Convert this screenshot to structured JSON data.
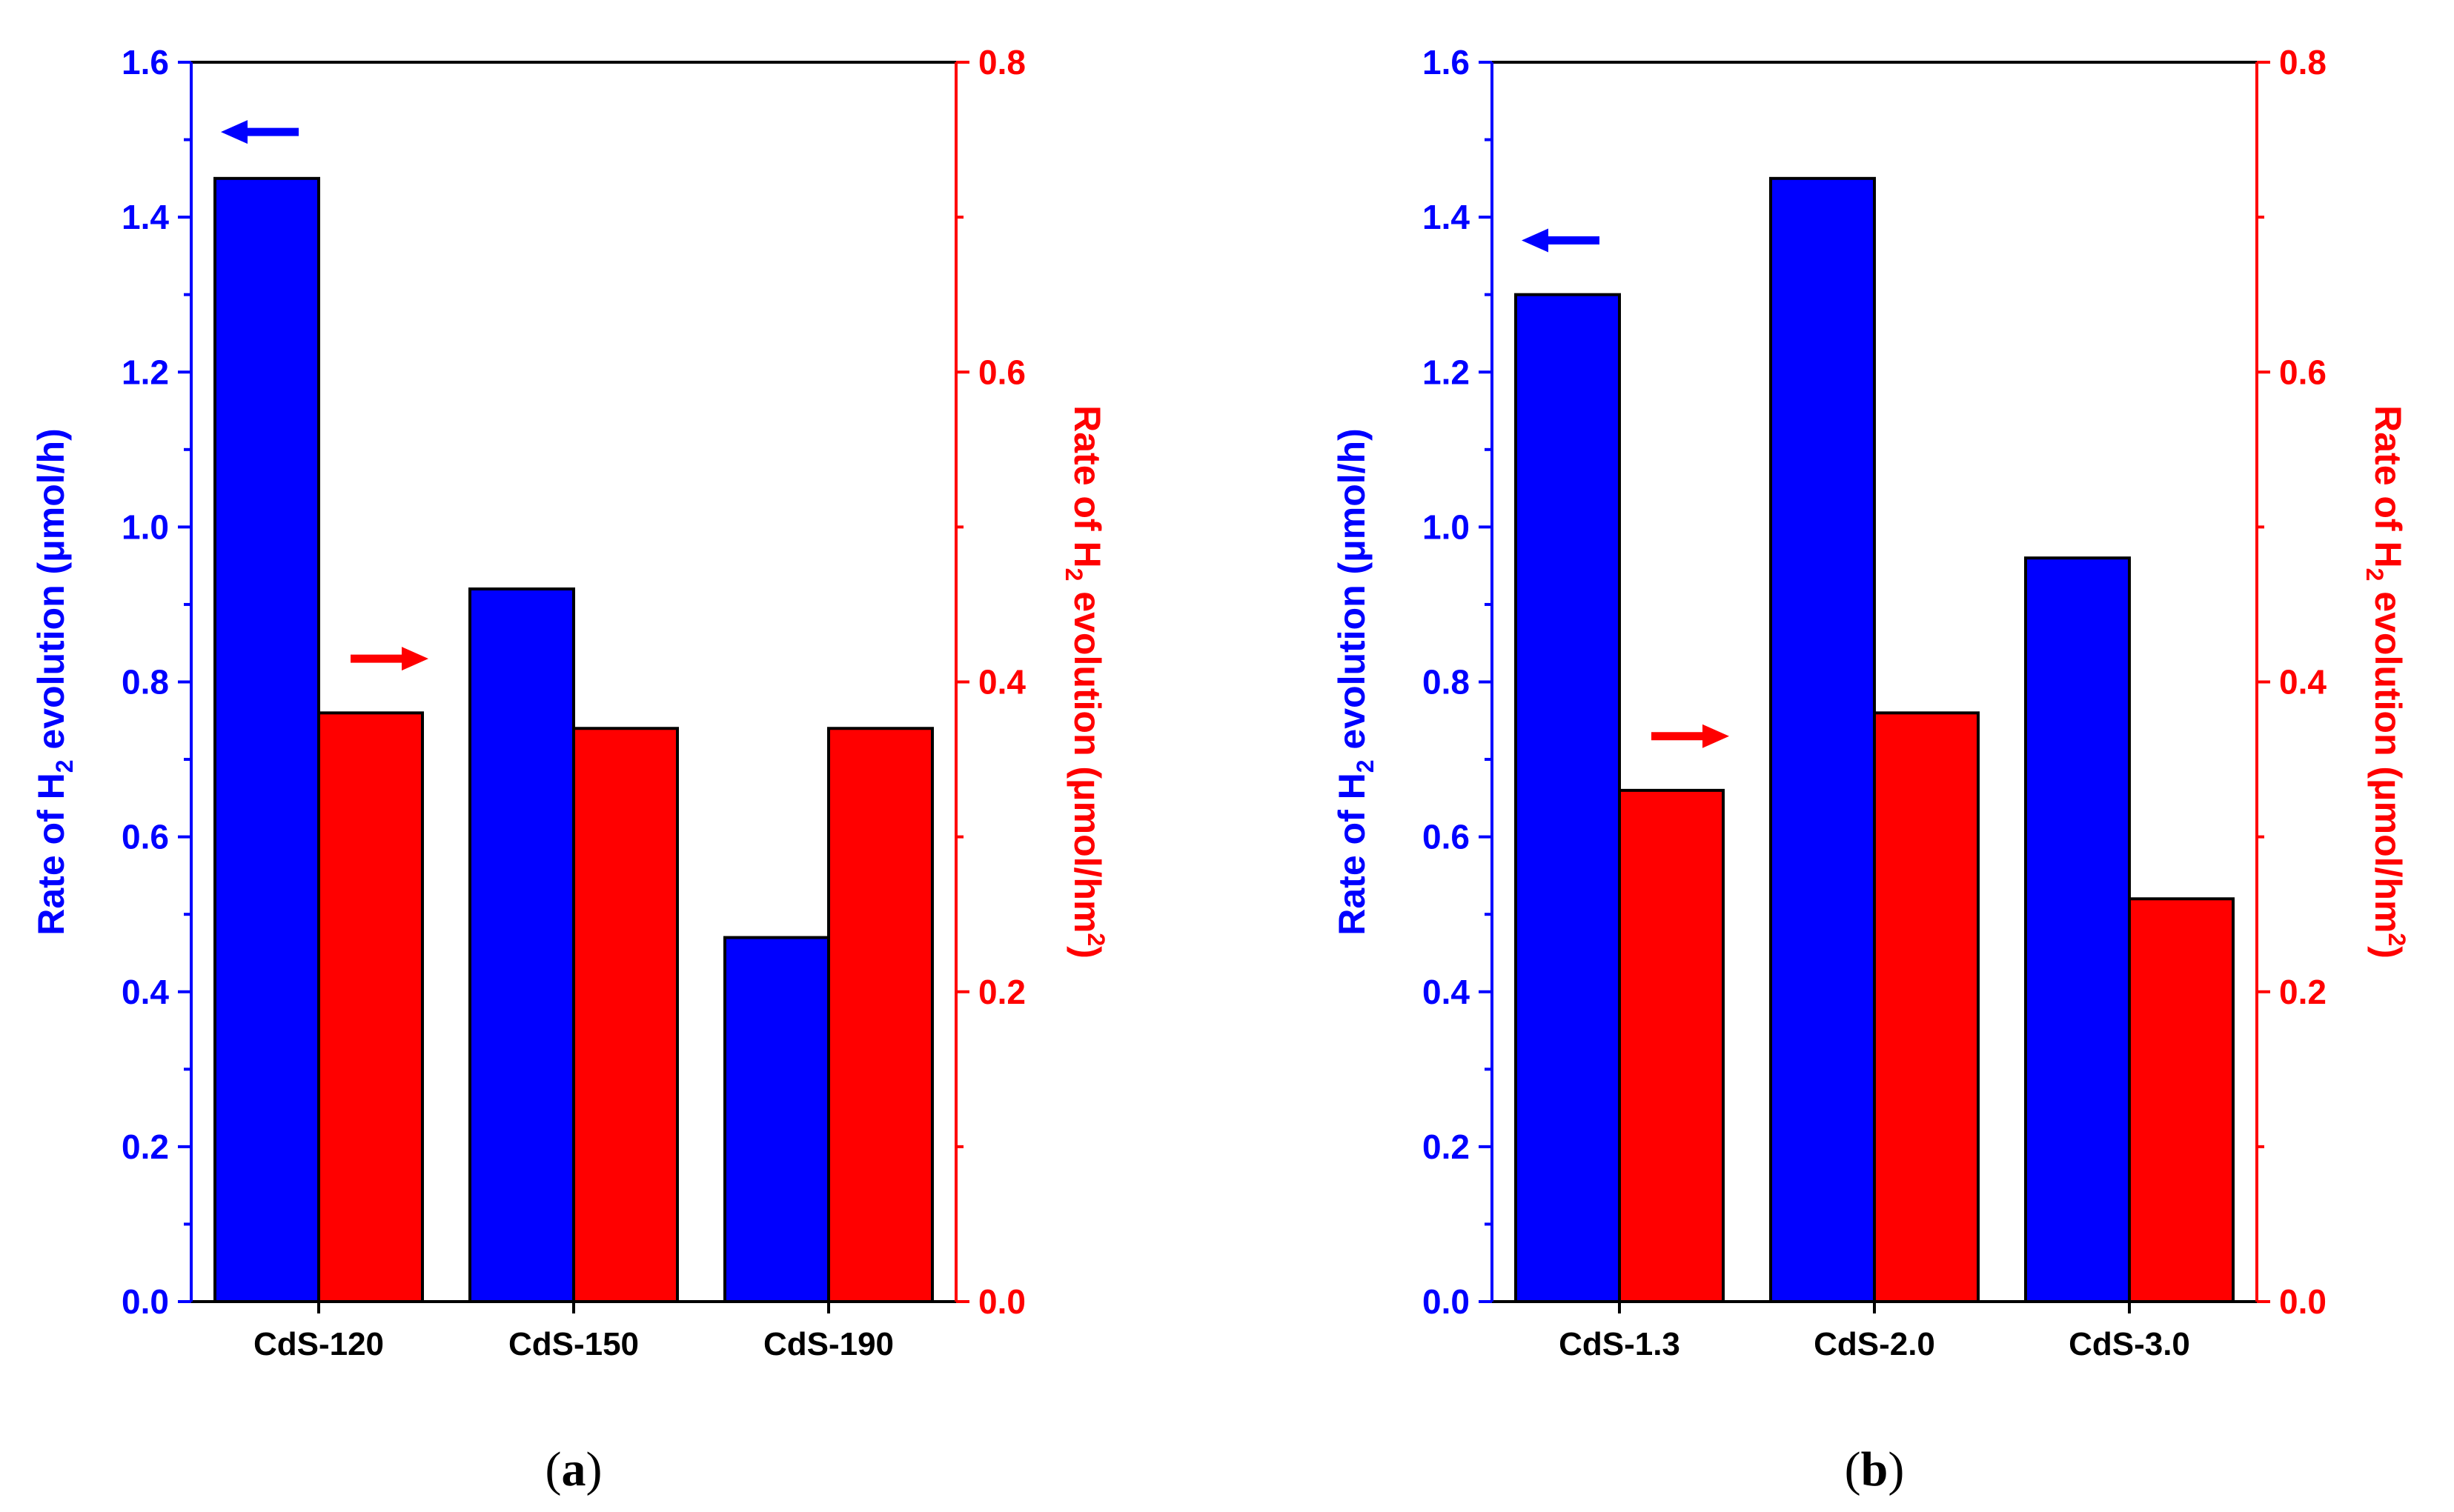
{
  "colors": {
    "left_series": "#0000ff",
    "right_series": "#ff0000",
    "axis": "#000000"
  },
  "chart_data": [
    {
      "panel_label": "(a)",
      "panel_letter": "a",
      "type": "bar",
      "categories": [
        "CdS-120",
        "CdS-150",
        "CdS-190"
      ],
      "series": [
        {
          "name": "Rate of H2 evolution (μmol/h)",
          "axis": "left",
          "values": [
            1.45,
            0.92,
            0.47
          ]
        },
        {
          "name": "Rate of H2 evolution (μmol/hm²)",
          "axis": "right",
          "values": [
            0.38,
            0.37,
            0.37
          ]
        }
      ],
      "y_left": {
        "label_main": "Rate of H",
        "label_sub": "2",
        "label_rest": " evolution (μmol/h)",
        "range": [
          0,
          1.6
        ],
        "ticks": [
          "0.0",
          "0.2",
          "0.4",
          "0.6",
          "0.8",
          "1.0",
          "1.2",
          "1.4",
          "1.6"
        ]
      },
      "y_right": {
        "label_main": "Rate of H",
        "label_sub": "2",
        "label_rest": " evolution (μmol/hm",
        "label_sup": "2",
        "label_end": ")",
        "range": [
          0,
          0.8
        ],
        "ticks": [
          "0.0",
          "0.2",
          "0.4",
          "0.6",
          "0.8"
        ]
      },
      "annotations": [
        {
          "type": "arrow",
          "direction": "left",
          "series": "left",
          "at_y_left": 1.51
        },
        {
          "type": "arrow",
          "direction": "right",
          "series": "right",
          "at_y_left": 0.83
        }
      ]
    },
    {
      "panel_label": "(b)",
      "panel_letter": "b",
      "type": "bar",
      "categories": [
        "CdS-1.3",
        "CdS-2.0",
        "CdS-3.0"
      ],
      "series": [
        {
          "name": "Rate of H2 evolution (μmol/h)",
          "axis": "left",
          "values": [
            1.3,
            1.45,
            0.96
          ]
        },
        {
          "name": "Rate of H2 evolution (μmol/hm²)",
          "axis": "right",
          "values": [
            0.33,
            0.38,
            0.26
          ]
        }
      ],
      "y_left": {
        "label_main": "Rate of H",
        "label_sub": "2",
        "label_rest": " evolution (μmol/h)",
        "range": [
          0,
          1.6
        ],
        "ticks": [
          "0.0",
          "0.2",
          "0.4",
          "0.6",
          "0.8",
          "1.0",
          "1.2",
          "1.4",
          "1.6"
        ]
      },
      "y_right": {
        "label_main": "Rate of H",
        "label_sub": "2",
        "label_rest": " evolution (μmol/hm",
        "label_sup": "2",
        "label_end": ")",
        "range": [
          0,
          0.8
        ],
        "ticks": [
          "0.0",
          "0.2",
          "0.4",
          "0.6",
          "0.8"
        ]
      },
      "annotations": [
        {
          "type": "arrow",
          "direction": "left",
          "series": "left",
          "at_y_left": 1.37
        },
        {
          "type": "arrow",
          "direction": "right",
          "series": "right",
          "at_y_left": 0.73
        }
      ]
    }
  ]
}
